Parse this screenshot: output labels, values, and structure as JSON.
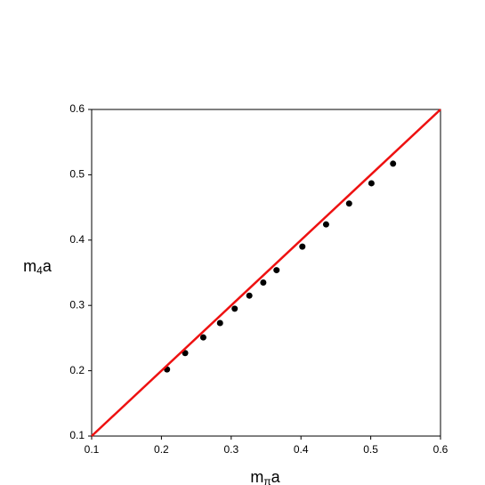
{
  "chart_data": {
    "type": "scatter",
    "x_label": {
      "base": "m",
      "subscript": "π",
      "suffix": "a"
    },
    "y_label": {
      "base": "m",
      "subscript": "4",
      "suffix": "a"
    },
    "xlim": [
      0.1,
      0.6
    ],
    "ylim": [
      0.1,
      0.6
    ],
    "xticks": [
      0.1,
      0.2,
      0.3,
      0.4,
      0.5,
      0.6
    ],
    "yticks": [
      0.1,
      0.2,
      0.3,
      0.4,
      0.5,
      0.6
    ],
    "series": [
      {
        "type": "scatter",
        "color": "#000000",
        "x": [
          0.208,
          0.234,
          0.26,
          0.284,
          0.305,
          0.326,
          0.346,
          0.365,
          0.402,
          0.436,
          0.469,
          0.501,
          0.532
        ],
        "values": [
          0.202,
          0.227,
          0.251,
          0.273,
          0.295,
          0.315,
          0.335,
          0.354,
          0.39,
          0.424,
          0.456,
          0.487,
          0.517
        ]
      },
      {
        "type": "line",
        "color": "#ee1111",
        "x": [
          0.1,
          0.6
        ],
        "values": [
          0.1,
          0.6
        ]
      }
    ]
  }
}
